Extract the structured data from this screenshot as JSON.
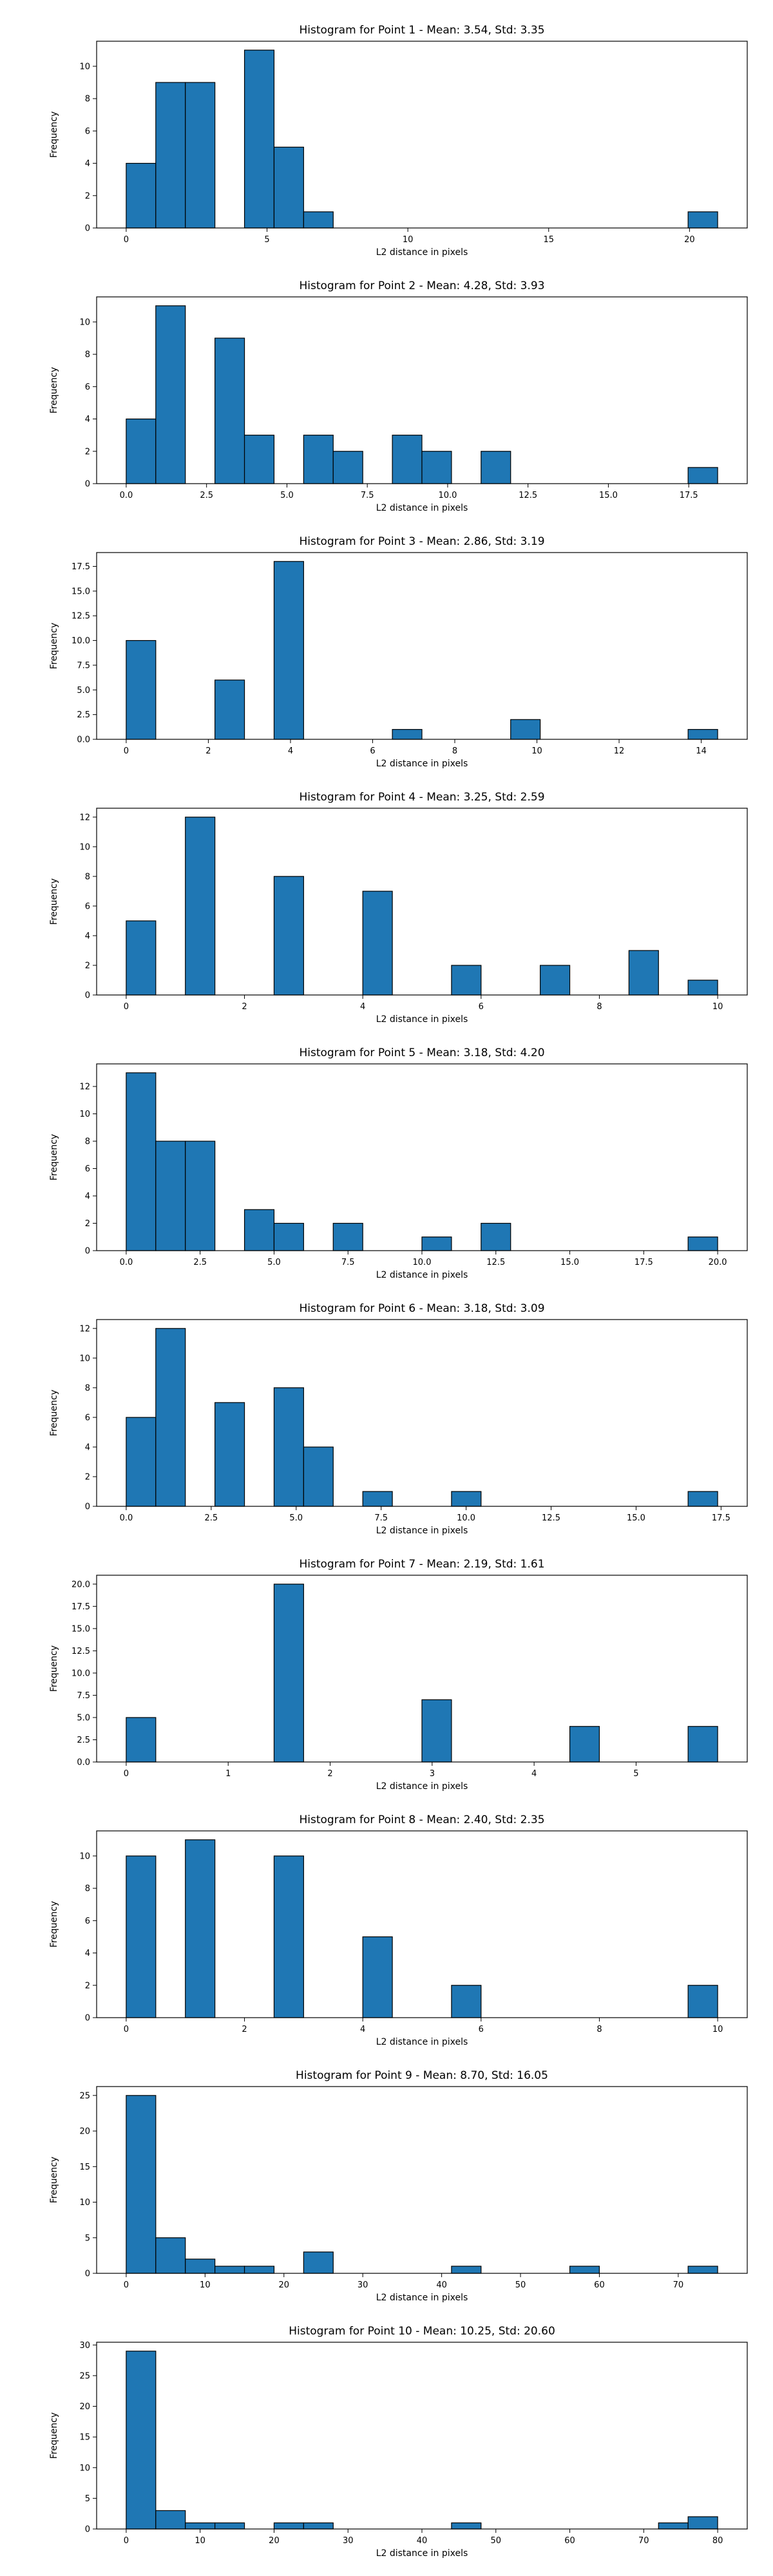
{
  "colors": {
    "bar_fill": "#1f77b4",
    "bar_edge": "#000000",
    "background": "#ffffff"
  },
  "chart_data": [
    {
      "type": "bar",
      "title": "Histogram for Point 1 - Mean: 3.54, Std: 3.35",
      "xlabel": "L2 distance in pixels",
      "ylabel": "Frequency",
      "xlim": [
        -1.05,
        22.05
      ],
      "ylim": [
        0,
        11.55
      ],
      "xticks": [
        0,
        5,
        10,
        15,
        20
      ],
      "xtick_labels": [
        "0",
        "5",
        "10",
        "15",
        "20"
      ],
      "yticks": [
        0,
        2,
        4,
        6,
        8,
        10
      ],
      "ytick_labels": [
        "0",
        "2",
        "4",
        "6",
        "8",
        "10"
      ],
      "bin_start": 0,
      "bin_width": 1.05,
      "counts": [
        4,
        9,
        9,
        0,
        11,
        5,
        1,
        0,
        0,
        0,
        0,
        0,
        0,
        0,
        0,
        0,
        0,
        0,
        0,
        1
      ]
    },
    {
      "type": "bar",
      "title": "Histogram for Point 2 - Mean: 4.28, Std: 3.93",
      "xlabel": "L2 distance in pixels",
      "ylabel": "Frequency",
      "xlim": [
        -0.92,
        19.32
      ],
      "ylim": [
        0,
        11.55
      ],
      "xticks": [
        0,
        2.5,
        5,
        7.5,
        10,
        12.5,
        15,
        17.5
      ],
      "xtick_labels": [
        "0.0",
        "2.5",
        "5.0",
        "7.5",
        "10.0",
        "12.5",
        "15.0",
        "17.5"
      ],
      "yticks": [
        0,
        2,
        4,
        6,
        8,
        10
      ],
      "ytick_labels": [
        "0",
        "2",
        "4",
        "6",
        "8",
        "10"
      ],
      "bin_start": 0,
      "bin_width": 0.92,
      "counts": [
        4,
        11,
        0,
        9,
        3,
        0,
        3,
        2,
        0,
        3,
        2,
        0,
        2,
        0,
        0,
        0,
        0,
        0,
        0,
        1
      ]
    },
    {
      "type": "bar",
      "title": "Histogram for Point 3 - Mean: 2.86, Std: 3.19",
      "xlabel": "L2 distance in pixels",
      "ylabel": "Frequency",
      "xlim": [
        -0.72,
        15.12
      ],
      "ylim": [
        0,
        18.9
      ],
      "xticks": [
        0,
        2,
        4,
        6,
        8,
        10,
        12,
        14
      ],
      "xtick_labels": [
        "0",
        "2",
        "4",
        "6",
        "8",
        "10",
        "12",
        "14"
      ],
      "yticks": [
        0,
        2.5,
        5,
        7.5,
        10,
        12.5,
        15,
        17.5
      ],
      "ytick_labels": [
        "0.0",
        "2.5",
        "5.0",
        "7.5",
        "10.0",
        "12.5",
        "15.0",
        "17.5"
      ],
      "bin_start": 0,
      "bin_width": 0.72,
      "counts": [
        10,
        0,
        0,
        6,
        0,
        18,
        0,
        0,
        0,
        1,
        0,
        0,
        0,
        2,
        0,
        0,
        0,
        0,
        0,
        1
      ]
    },
    {
      "type": "bar",
      "title": "Histogram for Point 4 - Mean: 3.25, Std: 2.59",
      "xlabel": "L2 distance in pixels",
      "ylabel": "Frequency",
      "xlim": [
        -0.5,
        10.5
      ],
      "ylim": [
        0,
        12.6
      ],
      "xticks": [
        0,
        2,
        4,
        6,
        8,
        10
      ],
      "xtick_labels": [
        "0",
        "2",
        "4",
        "6",
        "8",
        "10"
      ],
      "yticks": [
        0,
        2,
        4,
        6,
        8,
        10,
        12
      ],
      "ytick_labels": [
        "0",
        "2",
        "4",
        "6",
        "8",
        "10",
        "12"
      ],
      "bin_start": 0,
      "bin_width": 0.5,
      "counts": [
        5,
        0,
        12,
        0,
        0,
        8,
        0,
        0,
        7,
        0,
        0,
        2,
        0,
        0,
        2,
        0,
        0,
        3,
        0,
        1
      ]
    },
    {
      "type": "bar",
      "title": "Histogram for Point 5 - Mean: 3.18, Std: 4.20",
      "xlabel": "L2 distance in pixels",
      "ylabel": "Frequency",
      "xlim": [
        -1.0,
        21.0
      ],
      "ylim": [
        0,
        13.65
      ],
      "xticks": [
        0,
        2.5,
        5,
        7.5,
        10,
        12.5,
        15,
        17.5,
        20
      ],
      "xtick_labels": [
        "0.0",
        "2.5",
        "5.0",
        "7.5",
        "10.0",
        "12.5",
        "15.0",
        "17.5",
        "20.0"
      ],
      "yticks": [
        0,
        2,
        4,
        6,
        8,
        10,
        12
      ],
      "ytick_labels": [
        "0",
        "2",
        "4",
        "6",
        "8",
        "10",
        "12"
      ],
      "bin_start": 0,
      "bin_width": 1.0,
      "counts": [
        13,
        8,
        8,
        0,
        3,
        2,
        0,
        2,
        0,
        0,
        1,
        0,
        2,
        0,
        0,
        0,
        0,
        0,
        0,
        1
      ]
    },
    {
      "type": "bar",
      "title": "Histogram for Point 6 - Mean: 3.18, Std: 3.09",
      "xlabel": "L2 distance in pixels",
      "ylabel": "Frequency",
      "xlim": [
        -0.87,
        18.27
      ],
      "ylim": [
        0,
        12.6
      ],
      "xticks": [
        0,
        2.5,
        5,
        7.5,
        10,
        12.5,
        15,
        17.5
      ],
      "xtick_labels": [
        "0.0",
        "2.5",
        "5.0",
        "7.5",
        "10.0",
        "12.5",
        "15.0",
        "17.5"
      ],
      "yticks": [
        0,
        2,
        4,
        6,
        8,
        10,
        12
      ],
      "ytick_labels": [
        "0",
        "2",
        "4",
        "6",
        "8",
        "10",
        "12"
      ],
      "bin_start": 0,
      "bin_width": 0.87,
      "counts": [
        6,
        12,
        0,
        7,
        0,
        8,
        4,
        0,
        1,
        0,
        0,
        1,
        0,
        0,
        0,
        0,
        0,
        0,
        0,
        1
      ]
    },
    {
      "type": "bar",
      "title": "Histogram for Point 7 - Mean: 2.19, Std: 1.61",
      "xlabel": "L2 distance in pixels",
      "ylabel": "Frequency",
      "xlim": [
        -0.29,
        6.09
      ],
      "ylim": [
        0,
        21.0
      ],
      "xticks": [
        0,
        1,
        2,
        3,
        4,
        5
      ],
      "xtick_labels": [
        "0",
        "1",
        "2",
        "3",
        "4",
        "5"
      ],
      "yticks": [
        0,
        2.5,
        5,
        7.5,
        10,
        12.5,
        15,
        17.5,
        20
      ],
      "ytick_labels": [
        "0.0",
        "2.5",
        "5.0",
        "7.5",
        "10.0",
        "12.5",
        "15.0",
        "17.5",
        "20.0"
      ],
      "bin_start": 0,
      "bin_width": 0.29,
      "counts": [
        5,
        0,
        0,
        0,
        0,
        20,
        0,
        0,
        0,
        0,
        7,
        0,
        0,
        0,
        0,
        4,
        0,
        0,
        0,
        4
      ]
    },
    {
      "type": "bar",
      "title": "Histogram for Point 8 - Mean: 2.40, Std: 2.35",
      "xlabel": "L2 distance in pixels",
      "ylabel": "Frequency",
      "xlim": [
        -0.5,
        10.5
      ],
      "ylim": [
        0,
        11.55
      ],
      "xticks": [
        0,
        2,
        4,
        6,
        8,
        10
      ],
      "xtick_labels": [
        "0",
        "2",
        "4",
        "6",
        "8",
        "10"
      ],
      "yticks": [
        0,
        2,
        4,
        6,
        8,
        10
      ],
      "ytick_labels": [
        "0",
        "2",
        "4",
        "6",
        "8",
        "10"
      ],
      "bin_start": 0,
      "bin_width": 0.5,
      "counts": [
        10,
        0,
        11,
        0,
        0,
        10,
        0,
        0,
        5,
        0,
        0,
        2,
        0,
        0,
        0,
        0,
        0,
        0,
        0,
        2
      ]
    },
    {
      "type": "bar",
      "title": "Histogram for Point 9 - Mean: 8.70, Std: 16.05",
      "xlabel": "L2 distance in pixels",
      "ylabel": "Frequency",
      "xlim": [
        -3.75,
        78.75
      ],
      "ylim": [
        0,
        26.25
      ],
      "xticks": [
        0,
        10,
        20,
        30,
        40,
        50,
        60,
        70
      ],
      "xtick_labels": [
        "0",
        "10",
        "20",
        "30",
        "40",
        "50",
        "60",
        "70"
      ],
      "yticks": [
        0,
        5,
        10,
        15,
        20,
        25
      ],
      "ytick_labels": [
        "0",
        "5",
        "10",
        "15",
        "20",
        "25"
      ],
      "bin_start": 0,
      "bin_width": 3.75,
      "counts": [
        25,
        5,
        2,
        1,
        1,
        0,
        3,
        0,
        0,
        0,
        0,
        1,
        0,
        0,
        0,
        1,
        0,
        0,
        0,
        1
      ]
    },
    {
      "type": "bar",
      "title": "Histogram for Point 10 - Mean: 10.25, Std: 20.60",
      "xlabel": "L2 distance in pixels",
      "ylabel": "Frequency",
      "xlim": [
        -4.0,
        84.0
      ],
      "ylim": [
        0,
        30.45
      ],
      "xticks": [
        0,
        10,
        20,
        30,
        40,
        50,
        60,
        70,
        80
      ],
      "xtick_labels": [
        "0",
        "10",
        "20",
        "30",
        "40",
        "50",
        "60",
        "70",
        "80"
      ],
      "yticks": [
        0,
        5,
        10,
        15,
        20,
        25,
        30
      ],
      "ytick_labels": [
        "0",
        "5",
        "10",
        "15",
        "20",
        "25",
        "30"
      ],
      "bin_start": 0,
      "bin_width": 4.0,
      "counts": [
        29,
        3,
        1,
        1,
        0,
        1,
        1,
        0,
        0,
        0,
        0,
        1,
        0,
        0,
        0,
        0,
        0,
        0,
        1,
        2
      ]
    }
  ]
}
